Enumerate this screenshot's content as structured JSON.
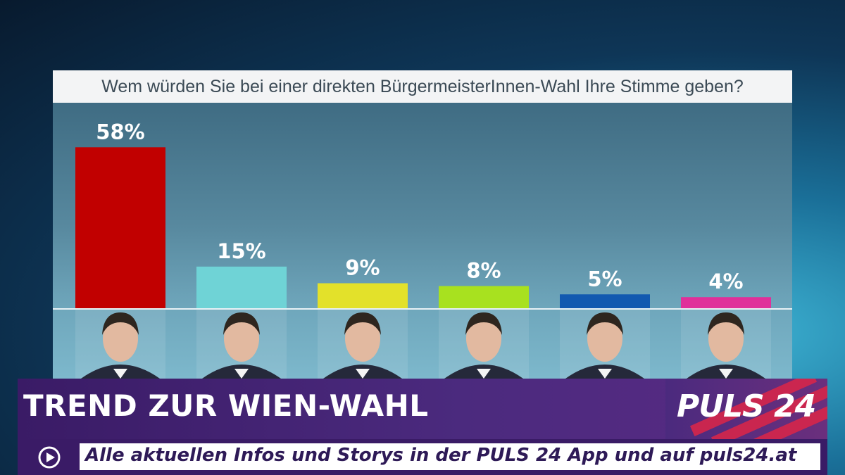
{
  "chart_data": {
    "type": "bar",
    "title": "Wem würden Sie bei einer direkten BürgermeisterInnen-Wahl Ihre Stimme geben?",
    "categories": [
      "",
      "",
      "",
      "",
      "",
      ""
    ],
    "values": [
      58,
      15,
      9,
      8,
      5,
      4
    ],
    "value_labels": [
      "58%",
      "15%",
      "9%",
      "8%",
      "5%",
      "4%"
    ],
    "colors": [
      "#c10000",
      "#6fd3d6",
      "#e3e12a",
      "#a8e11f",
      "#1259b0",
      "#e0309a"
    ],
    "ylim": [
      0,
      60
    ],
    "grid": false,
    "legend": "none"
  },
  "banner": {
    "headline": "TREND ZUR WIEN-WAHL",
    "logo": "PULS 24",
    "ticker": "Alle aktuellen Infos und Storys in der PULS 24 App und auf puls24.at",
    "play_icon": "play-circle-icon"
  }
}
